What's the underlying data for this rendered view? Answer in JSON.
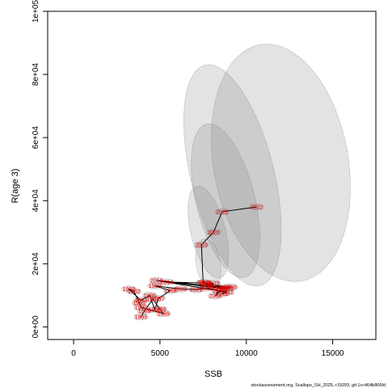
{
  "chart_data": {
    "type": "scatter",
    "title": "",
    "xlabel": "SSB",
    "ylabel": "R(age 3)",
    "xlim": [
      -1500,
      17500
    ],
    "ylim": [
      -4000,
      100000
    ],
    "x_ticks": [
      0,
      5000,
      10000,
      15000
    ],
    "x_tick_labels": [
      "0",
      "5000",
      "10000",
      "15000"
    ],
    "y_ticks": [
      0,
      20000,
      40000,
      60000,
      80000,
      100000
    ],
    "y_tick_labels": [
      "0e+00",
      "2e+04",
      "4e+04",
      "6e+04",
      "8e+04",
      "1e+05"
    ],
    "grid": false,
    "legend": "none",
    "footer": "stockassessment.org, Scallops_SH_2025, r19293, git:1cc464b806fd",
    "colors": {
      "label": "#ff0000",
      "path": "#000000",
      "ellipse_fill": "#808080",
      "ellipse_stroke": "#888888"
    },
    "points": [
      {
        "year": "1985",
        "ssb": 3900,
        "rec": 3200
      },
      {
        "year": "1986",
        "ssb": 4100,
        "rec": 5100
      },
      {
        "year": "1987",
        "ssb": 4600,
        "rec": 8800
      },
      {
        "year": "1988",
        "ssb": 5000,
        "rec": 5600
      },
      {
        "year": "1989",
        "ssb": 5200,
        "rec": 4200
      },
      {
        "year": "1990",
        "ssb": 3900,
        "rec": 6200
      },
      {
        "year": "1991",
        "ssb": 3800,
        "rec": 7600
      },
      {
        "year": "1992",
        "ssb": 3500,
        "rec": 11200
      },
      {
        "year": "1993",
        "ssb": 3200,
        "rec": 12000
      },
      {
        "year": "1994",
        "ssb": 3900,
        "rec": 8400
      },
      {
        "year": "1995",
        "ssb": 4400,
        "rec": 10000
      },
      {
        "year": "1996",
        "ssb": 4700,
        "rec": 5500
      },
      {
        "year": "1997",
        "ssb": 4900,
        "rec": 9000
      },
      {
        "year": "1998",
        "ssb": 5600,
        "rec": 11500
      },
      {
        "year": "1999",
        "ssb": 4700,
        "rec": 13000
      },
      {
        "year": "2000",
        "ssb": 6200,
        "rec": 12000
      },
      {
        "year": "2001",
        "ssb": 7100,
        "rec": 11800
      },
      {
        "year": "2002",
        "ssb": 7700,
        "rec": 12300
      },
      {
        "year": "2003",
        "ssb": 8400,
        "rec": 11500
      },
      {
        "year": "2004",
        "ssb": 8200,
        "rec": 9800
      },
      {
        "year": "2005",
        "ssb": 8600,
        "rec": 12000
      },
      {
        "year": "2006",
        "ssb": 9100,
        "rec": 12600
      },
      {
        "year": "2007",
        "ssb": 7800,
        "rec": 12700
      },
      {
        "year": "2008",
        "ssb": 7600,
        "rec": 14000
      },
      {
        "year": "2009",
        "ssb": 8800,
        "rec": 12500
      },
      {
        "year": "2010",
        "ssb": 4800,
        "rec": 14700
      },
      {
        "year": "2011",
        "ssb": 8900,
        "rec": 11000
      },
      {
        "year": "2012",
        "ssb": 8600,
        "rec": 10500
      },
      {
        "year": "2013",
        "ssb": 8900,
        "rec": 12000
      },
      {
        "year": "2014",
        "ssb": 5400,
        "rec": 14200
      },
      {
        "year": "2015",
        "ssb": 8100,
        "rec": 13800
      },
      {
        "year": "2016",
        "ssb": 7700,
        "rec": 13300
      },
      {
        "year": "2017",
        "ssb": 8400,
        "rec": 12300
      },
      {
        "year": "2018",
        "ssb": 7500,
        "rec": 14000
      },
      {
        "year": "2019",
        "ssb": 7400,
        "rec": 26000
      },
      {
        "year": "2020",
        "ssb": 8100,
        "rec": 30000
      },
      {
        "year": "2021",
        "ssb": 8600,
        "rec": 36500
      },
      {
        "year": "2022",
        "ssb": 10600,
        "rec": 38000
      }
    ],
    "path_order": [
      "1985",
      "1986",
      "1987",
      "1988",
      "1989",
      "1990",
      "1991",
      "1992",
      "1993",
      "1994",
      "1995",
      "1996",
      "1997",
      "1998",
      "1999",
      "2000",
      "2001",
      "2002",
      "2003",
      "2004",
      "2005",
      "2006",
      "2007",
      "2008",
      "2009",
      "2010",
      "2011",
      "2012",
      "2013",
      "2014",
      "2015",
      "2016",
      "2017",
      "2018",
      "2019",
      "2020",
      "2021",
      "2022"
    ]
  }
}
